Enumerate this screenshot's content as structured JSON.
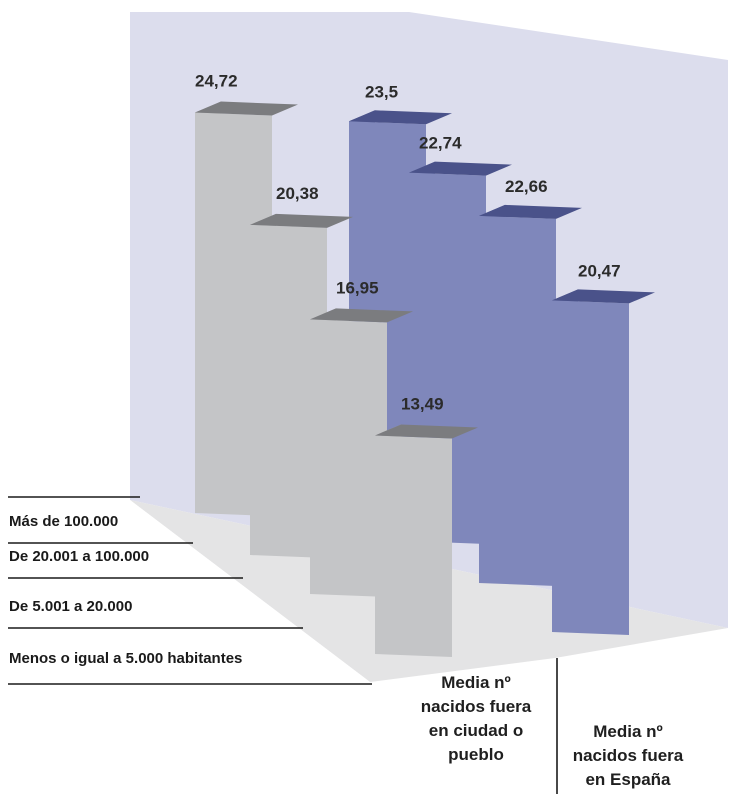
{
  "chart_data": {
    "type": "bar",
    "title": "",
    "categories": [
      "Más de 100.000",
      "De 20.001 a 100.000",
      "De 5.001 a 20.000",
      "Menos o igual a 5.000 habitantes"
    ],
    "groups": [
      "Media nº nacidos fuera en ciudad o pueblo",
      "Media nº nacidos fuera en España"
    ],
    "series": [
      {
        "values": [
          24.72,
          20.38,
          16.95,
          13.49
        ]
      },
      {
        "values": [
          23.5,
          22.74,
          22.66,
          20.47
        ]
      }
    ],
    "value_labels": [
      [
        "24,72",
        "20,38",
        "16,95",
        "13,49"
      ],
      [
        "23,5",
        "22,74",
        "22,66",
        "20,47"
      ]
    ],
    "group_label_lines": [
      [
        "Media nº",
        "nacidos fuera",
        "en ciudad o",
        "pueblo"
      ],
      [
        "Media nº",
        "nacidos fuera",
        "en España"
      ]
    ],
    "colors": {
      "series_1": "#c4c5c7",
      "series_2": "#7f87bb",
      "back_wall": "#dcdded",
      "floor": "#e3e3e4"
    }
  }
}
